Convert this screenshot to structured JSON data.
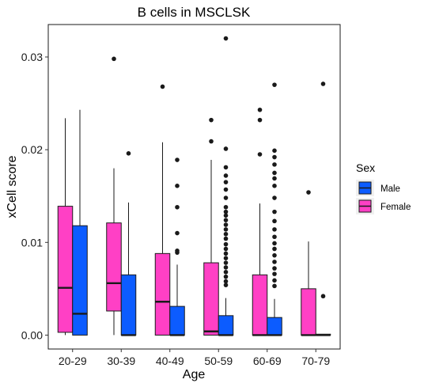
{
  "chart_data": {
    "type": "boxplot",
    "title": "B cells in MSCLSK",
    "xlabel": "Age",
    "ylabel": "xCell score",
    "ylim": [
      -0.0015,
      0.0335
    ],
    "yticks": [
      0.0,
      0.01,
      0.02,
      0.03
    ],
    "ytick_labels": [
      "0.00",
      "0.01",
      "0.02",
      "0.03"
    ],
    "grid": false,
    "categories": [
      "20-29",
      "30-39",
      "40-49",
      "50-59",
      "60-69",
      "70-79"
    ],
    "legend": {
      "title": "Sex",
      "position": "right"
    },
    "series": [
      {
        "name": "Female",
        "color": "#ff40c5",
        "boxes": [
          {
            "whisker_low": 0.0,
            "q1": 0.0003,
            "median": 0.0051,
            "q3": 0.0139,
            "whisker_high": 0.0234,
            "outliers": []
          },
          {
            "whisker_low": 0.0,
            "q1": 0.0026,
            "median": 0.0056,
            "q3": 0.0121,
            "whisker_high": 0.018,
            "outliers": [
              0.0298
            ]
          },
          {
            "whisker_low": 0.0,
            "q1": 0.0,
            "median": 0.0036,
            "q3": 0.0088,
            "whisker_high": 0.0208,
            "outliers": [
              0.0268
            ]
          },
          {
            "whisker_low": 0.0,
            "q1": 0.0,
            "median": 0.0004,
            "q3": 0.0078,
            "whisker_high": 0.0189,
            "outliers": [
              0.0209,
              0.0232
            ]
          },
          {
            "whisker_low": 0.0,
            "q1": 0.0,
            "median": 0.0,
            "q3": 0.0065,
            "whisker_high": 0.0142,
            "outliers": [
              0.0195,
              0.0232,
              0.0243
            ]
          },
          {
            "whisker_low": 0.0,
            "q1": 0.0,
            "median": 0.0,
            "q3": 0.005,
            "whisker_high": 0.0101,
            "outliers": [
              0.0154
            ]
          }
        ]
      },
      {
        "name": "Male",
        "color": "#0c5cff",
        "boxes": [
          {
            "whisker_low": 0.0,
            "q1": 0.0,
            "median": 0.0023,
            "q3": 0.0118,
            "whisker_high": 0.0243,
            "outliers": []
          },
          {
            "whisker_low": 0.0,
            "q1": 0.0,
            "median": 0.0,
            "q3": 0.0065,
            "whisker_high": 0.0143,
            "outliers": [
              0.0196
            ]
          },
          {
            "whisker_low": 0.0,
            "q1": 0.0,
            "median": 0.0,
            "q3": 0.0031,
            "whisker_high": 0.0076,
            "outliers": [
              0.0089,
              0.0091,
              0.011,
              0.0138,
              0.0161,
              0.0189
            ]
          },
          {
            "whisker_low": 0.0,
            "q1": 0.0,
            "median": 0.0,
            "q3": 0.0021,
            "whisker_high": 0.004,
            "outliers": [
              0.0054,
              0.0058,
              0.0063,
              0.0068,
              0.0073,
              0.0078,
              0.0083,
              0.0088,
              0.0093,
              0.0098,
              0.0104,
              0.0109,
              0.0114,
              0.0119,
              0.0124,
              0.0129,
              0.0133,
              0.0138,
              0.0148,
              0.0157,
              0.0165,
              0.0172,
              0.0181,
              0.0201,
              0.032
            ]
          },
          {
            "whisker_low": 0.0,
            "q1": 0.0,
            "median": 0.0,
            "q3": 0.0019,
            "whisker_high": 0.0039,
            "outliers": [
              0.0053,
              0.0059,
              0.0066,
              0.0072,
              0.0079,
              0.0086,
              0.0093,
              0.0099,
              0.0106,
              0.0114,
              0.0123,
              0.0133,
              0.0148,
              0.0161,
              0.0169,
              0.0175,
              0.0184,
              0.0192,
              0.0199,
              0.027
            ]
          },
          {
            "whisker_low": 0.0,
            "q1": 0.0,
            "median": 0.0,
            "q3": 0.0001,
            "whisker_high": 0.0001,
            "outliers": [
              0.0042,
              0.0271
            ]
          }
        ]
      }
    ]
  }
}
